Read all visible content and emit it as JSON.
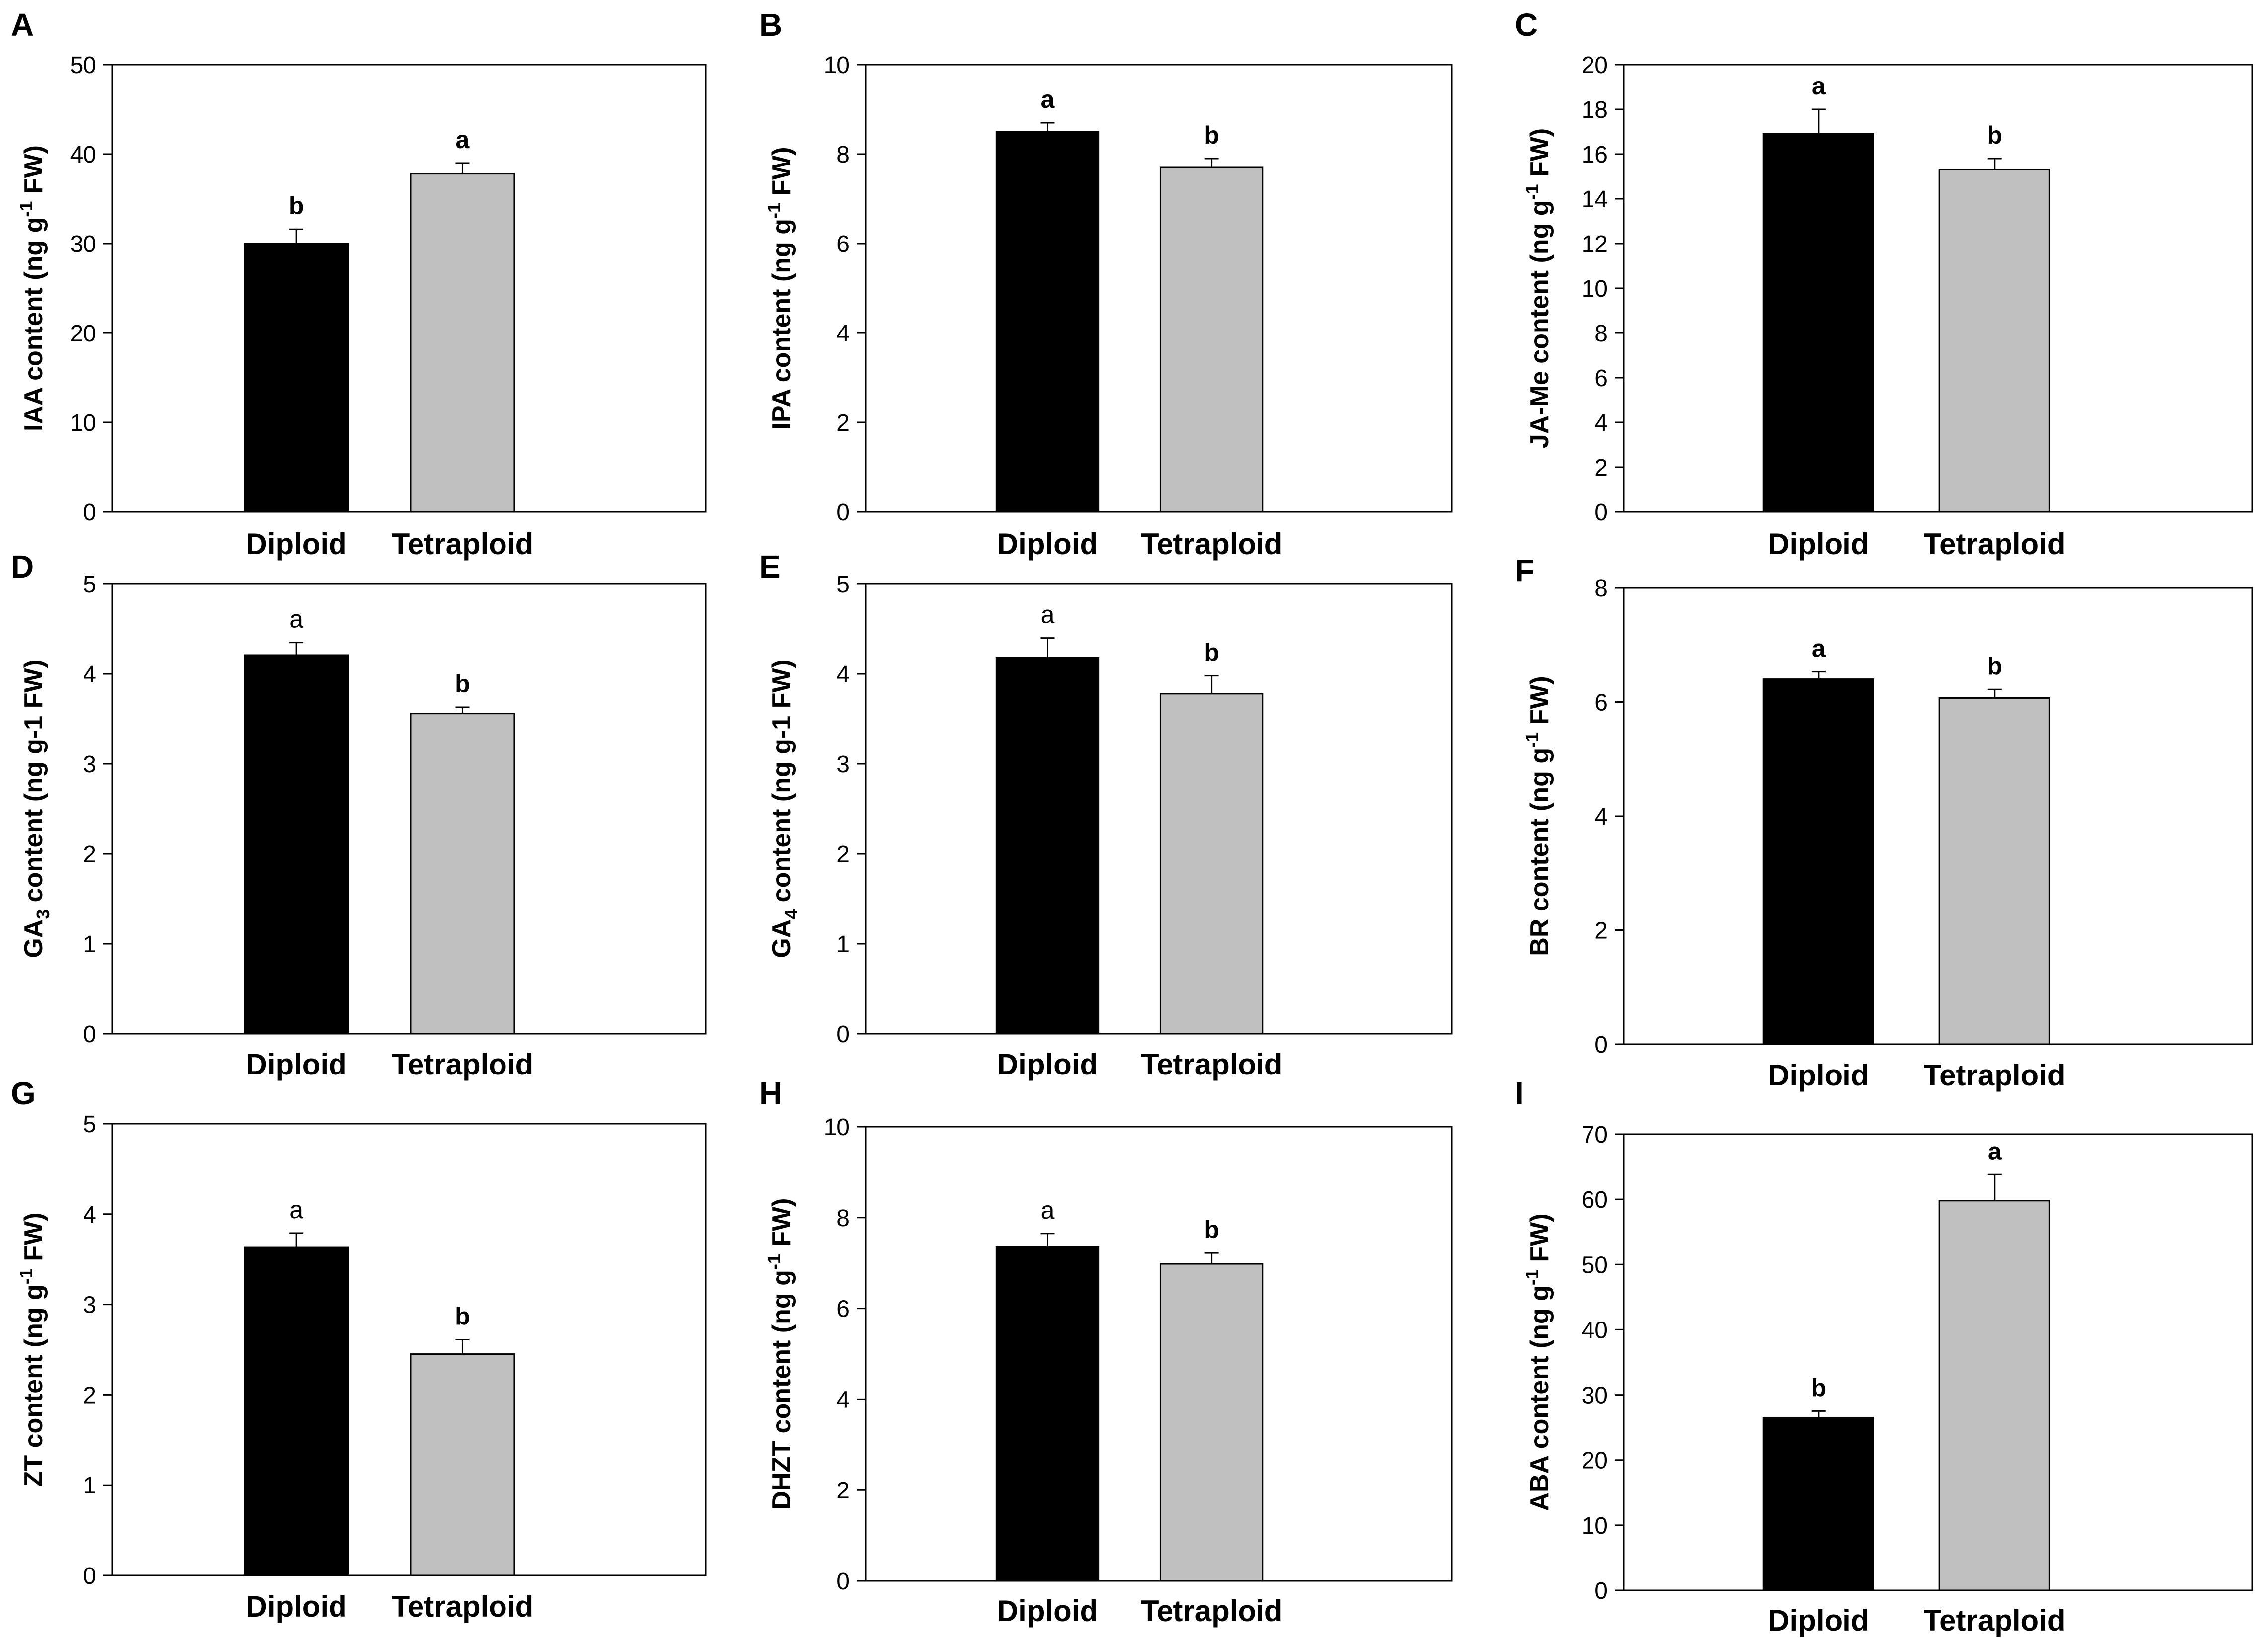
{
  "figure": {
    "description_colors": {
      "diploid_bar": "#000000",
      "tetraploid_bar": "#C0C0C0",
      "axis": "#000000",
      "background": "#FFFFFF"
    }
  },
  "chart_data": [
    {
      "panel": "A",
      "type": "bar",
      "categories": [
        "Diploid",
        "Tetraploid"
      ],
      "values": [
        30.0,
        37.8
      ],
      "errors": [
        1.6,
        1.2
      ],
      "significance": [
        "b",
        "a"
      ],
      "ylabel": "IAA content (ng g-1 FW)",
      "ylabel_parts": {
        "pre": "IAA content (ng g",
        "sup": "-1",
        "post": " FW)"
      },
      "ylim": [
        0,
        50
      ],
      "yticks": [
        0,
        10,
        20,
        30,
        40,
        50
      ],
      "grid": false
    },
    {
      "panel": "B",
      "type": "bar",
      "categories": [
        "Diploid",
        "Tetraploid"
      ],
      "values": [
        8.5,
        7.7
      ],
      "errors": [
        0.2,
        0.2
      ],
      "significance": [
        "a",
        "b"
      ],
      "ylabel": "IPA content (ng g-1 FW)",
      "ylabel_parts": {
        "pre": "IPA content (ng g",
        "sup": "-1",
        "post": " FW)"
      },
      "ylim": [
        0,
        10
      ],
      "yticks": [
        0,
        2,
        4,
        6,
        8,
        10
      ],
      "grid": false
    },
    {
      "panel": "C",
      "type": "bar",
      "categories": [
        "Diploid",
        "Tetraploid"
      ],
      "values": [
        16.9,
        15.3
      ],
      "errors": [
        1.1,
        0.5
      ],
      "significance": [
        "a",
        "b"
      ],
      "ylabel": "JA-Me content (ng g-1 FW)",
      "ylabel_parts": {
        "pre": "JA-Me content (ng g",
        "sup": "-1",
        "post": " FW)"
      },
      "ylim": [
        0,
        20
      ],
      "yticks": [
        0,
        2,
        4,
        6,
        8,
        10,
        12,
        14,
        16,
        18,
        20
      ],
      "grid": false
    },
    {
      "panel": "D",
      "type": "bar",
      "categories": [
        "Diploid",
        "Tetraploid"
      ],
      "values": [
        4.21,
        3.56
      ],
      "errors": [
        0.14,
        0.07
      ],
      "significance": [
        "a",
        "b"
      ],
      "ylabel": "GA3 content (ng g-1 FW)",
      "ylabel_parts": {
        "pre": "GA",
        "sub": "3",
        "post": " content (ng g-1 FW)"
      },
      "ylim": [
        0,
        5
      ],
      "yticks": [
        0,
        1,
        2,
        3,
        4,
        5
      ],
      "grid": false
    },
    {
      "panel": "E",
      "type": "bar",
      "categories": [
        "Diploid",
        "Tetraploid"
      ],
      "values": [
        4.18,
        3.78
      ],
      "errors": [
        0.22,
        0.2
      ],
      "significance": [
        "a",
        "b"
      ],
      "ylabel": "GA4 content (ng g-1 FW)",
      "ylabel_parts": {
        "pre": "GA",
        "sub": "4",
        "post": " content (ng g-1 FW)"
      },
      "ylim": [
        0,
        5
      ],
      "yticks": [
        0,
        1,
        2,
        3,
        4,
        5
      ],
      "grid": false
    },
    {
      "panel": "F",
      "type": "bar",
      "categories": [
        "Diploid",
        "Tetraploid"
      ],
      "values": [
        6.4,
        6.07
      ],
      "errors": [
        0.13,
        0.15
      ],
      "significance": [
        "a",
        "b"
      ],
      "ylabel": "BR content (ng g-1 FW)",
      "ylabel_parts": {
        "pre": "BR content (ng g",
        "sup": "-1",
        "post": " FW)"
      },
      "ylim": [
        0,
        8
      ],
      "yticks": [
        0,
        2,
        4,
        6,
        8
      ],
      "grid": false
    },
    {
      "panel": "G",
      "type": "bar",
      "categories": [
        "Diploid",
        "Tetraploid"
      ],
      "values": [
        3.63,
        2.45
      ],
      "errors": [
        0.16,
        0.16
      ],
      "significance": [
        "a",
        "b"
      ],
      "ylabel": "ZT content (ng g-1 FW)",
      "ylabel_parts": {
        "pre": "ZT content (ng g",
        "sup": "-1",
        "post": " FW)"
      },
      "ylim": [
        0,
        5
      ],
      "yticks": [
        0,
        1,
        2,
        3,
        4,
        5
      ],
      "grid": false
    },
    {
      "panel": "H",
      "type": "bar",
      "categories": [
        "Diploid",
        "Tetraploid"
      ],
      "values": [
        7.35,
        6.98
      ],
      "errors": [
        0.3,
        0.24
      ],
      "significance": [
        "a",
        "b"
      ],
      "ylabel": "DHZT content (ng g-1 FW)",
      "ylabel_parts": {
        "pre": "DHZT content (ng g",
        "sup": "-1",
        "post": " FW)"
      },
      "ylim": [
        0,
        10
      ],
      "yticks": [
        0,
        2,
        4,
        6,
        8,
        10
      ],
      "grid": false
    },
    {
      "panel": "I",
      "type": "bar",
      "categories": [
        "Diploid",
        "Tetraploid"
      ],
      "values": [
        26.5,
        59.8
      ],
      "errors": [
        1.0,
        4.0
      ],
      "significance": [
        "b",
        "a"
      ],
      "ylabel": "ABA content (ng g-1 FW)",
      "ylabel_parts": {
        "pre": "ABA content (ng g",
        "sup": "-1",
        "post": " FW)"
      },
      "ylim": [
        0,
        70
      ],
      "yticks": [
        0,
        10,
        20,
        30,
        40,
        50,
        60,
        70
      ],
      "grid": false
    }
  ]
}
